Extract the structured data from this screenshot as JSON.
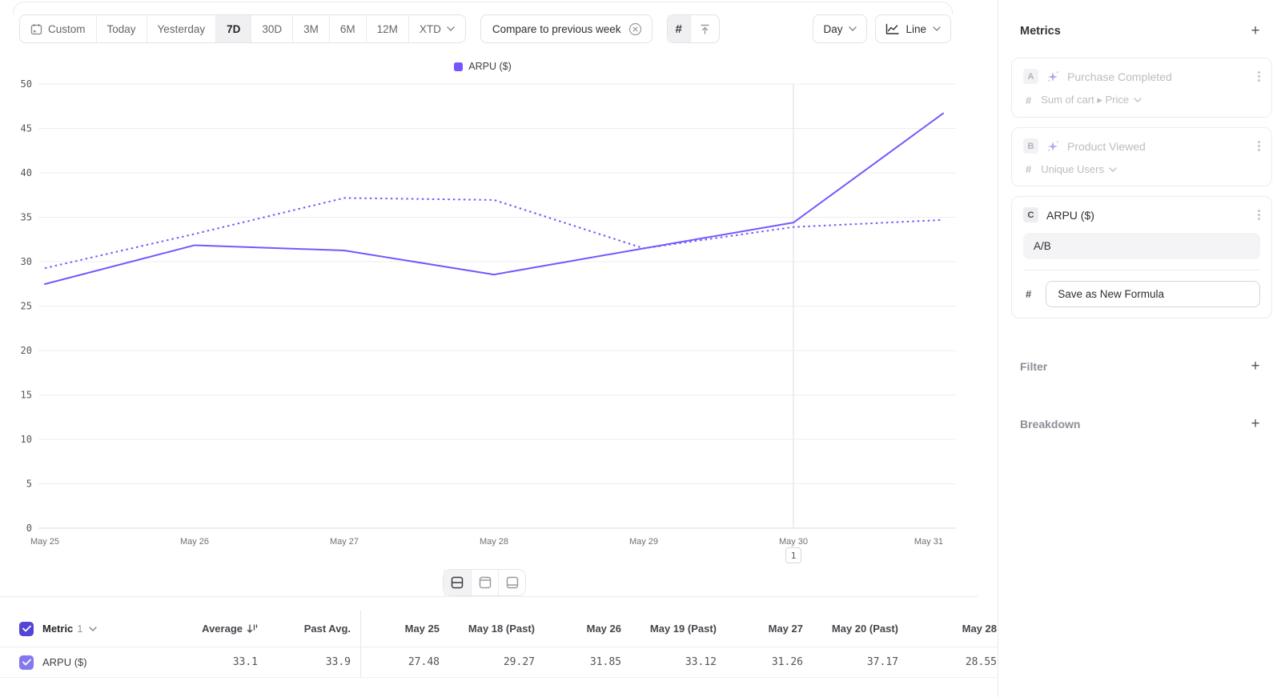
{
  "colors": {
    "accent": "#7856FF",
    "checkbox_dark": "#5346d6",
    "checkbox_light": "#8578ec"
  },
  "toolbar": {
    "ranges": [
      "Custom",
      "Today",
      "Yesterday",
      "7D",
      "30D",
      "3M",
      "6M",
      "12M",
      "XTD"
    ],
    "selected_range": "7D",
    "compare_label": "Compare to previous week",
    "granularity": "Day",
    "chart_type": "Line"
  },
  "chart_data": {
    "type": "line",
    "legend_label": "ARPU ($)",
    "x": [
      "May 25",
      "May 26",
      "May 27",
      "May 28",
      "May 29",
      "May 30",
      "May 31"
    ],
    "series": [
      {
        "name": "ARPU ($) current period",
        "style": "solid",
        "color": "#7856FF",
        "values": [
          27.48,
          31.85,
          31.26,
          28.55,
          31.5,
          34.4,
          46.7
        ]
      },
      {
        "name": "ARPU ($) previous week",
        "style": "dotted",
        "color": "#7856FF",
        "values": [
          29.27,
          33.12,
          37.17,
          36.95,
          31.5,
          33.9,
          34.7
        ]
      }
    ],
    "ylim": [
      0,
      50
    ],
    "yticks": [
      0,
      5,
      10,
      15,
      20,
      25,
      30,
      35,
      40,
      45,
      50
    ],
    "grid": "horizontal",
    "legend_position": "top-center",
    "annotation": {
      "x_index": 5,
      "label": "1"
    }
  },
  "table": {
    "metric_label": "Metric",
    "metric_count": "1",
    "columns": [
      "Average",
      "Past Avg.",
      "May 25",
      "May 18 (Past)",
      "May 26",
      "May 19 (Past)",
      "May 27",
      "May 20 (Past)",
      "May 28"
    ],
    "row": {
      "name": "ARPU ($)",
      "values": [
        "33.1",
        "33.9",
        "27.48",
        "29.27",
        "31.85",
        "33.12",
        "31.26",
        "37.17",
        "28.55"
      ]
    }
  },
  "sidebar": {
    "metrics_title": "Metrics",
    "card_a": {
      "badge": "A",
      "title": "Purchase Completed",
      "agg_prefix": "#",
      "aggregation": "Sum of cart ▸ Price"
    },
    "card_b": {
      "badge": "B",
      "title": "Product Viewed",
      "agg_prefix": "#",
      "aggregation": "Unique Users"
    },
    "card_c": {
      "badge": "C",
      "title": "ARPU ($)",
      "formula": "A/B",
      "agg_prefix": "#",
      "action_label": "Save as New Formula"
    },
    "filter_title": "Filter",
    "breakdown_title": "Breakdown"
  }
}
